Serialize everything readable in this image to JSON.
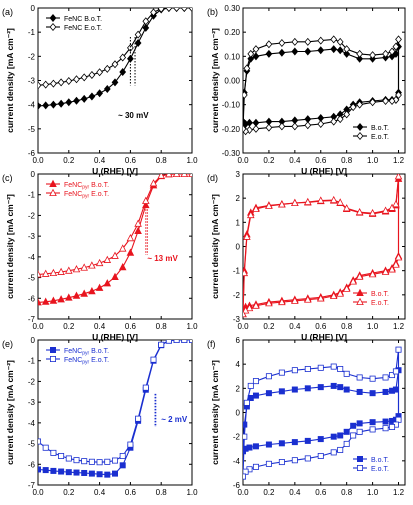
{
  "chart_data": [
    {
      "type": "line",
      "panel_label": "(a)",
      "xlabel": "U (RHE) [V]",
      "ylabel": "current density [mA cm⁻²]",
      "xlim": [
        0.0,
        1.0
      ],
      "ylim": [
        -6,
        0
      ],
      "xticks": [
        0.0,
        0.2,
        0.4,
        0.6,
        0.8,
        1.0
      ],
      "yticks": [
        0,
        -1,
        -2,
        -3,
        -4,
        -5,
        -6
      ],
      "legend_position": "top-left",
      "annotation": "~ 30 mV",
      "series": [
        {
          "name": "FeNC B.o.T.",
          "color": "#000000",
          "marker": "diamond-filled",
          "x": [
            0.0,
            0.05,
            0.1,
            0.15,
            0.2,
            0.25,
            0.3,
            0.35,
            0.4,
            0.45,
            0.5,
            0.55,
            0.6,
            0.65,
            0.7,
            0.75,
            0.8,
            0.85,
            0.9,
            0.95,
            1.0
          ],
          "y": [
            -4.05,
            -4.03,
            -4.0,
            -3.96,
            -3.9,
            -3.84,
            -3.76,
            -3.66,
            -3.53,
            -3.35,
            -3.08,
            -2.65,
            -2.1,
            -1.45,
            -0.82,
            -0.32,
            -0.06,
            0.0,
            0.0,
            0.0,
            0.0
          ]
        },
        {
          "name": "FeNC E.o.T.",
          "color": "#000000",
          "marker": "diamond-open",
          "x": [
            0.0,
            0.05,
            0.1,
            0.15,
            0.2,
            0.25,
            0.3,
            0.35,
            0.4,
            0.45,
            0.5,
            0.55,
            0.6,
            0.65,
            0.7,
            0.75,
            0.8,
            0.85,
            0.9,
            0.95,
            1.0
          ],
          "y": [
            -3.2,
            -3.17,
            -3.13,
            -3.08,
            -3.02,
            -2.95,
            -2.87,
            -2.77,
            -2.66,
            -2.52,
            -2.33,
            -2.05,
            -1.65,
            -1.1,
            -0.55,
            -0.18,
            -0.03,
            0.0,
            0.0,
            0.0,
            0.0
          ]
        }
      ]
    },
    {
      "type": "line",
      "panel_label": "(b)",
      "xlabel": "U (RHE) [V]",
      "ylabel": "current density [mA cm⁻²]",
      "xlim": [
        0.0,
        1.25
      ],
      "ylim": [
        -0.3,
        0.3
      ],
      "xticks": [
        0.0,
        0.2,
        0.4,
        0.6,
        0.8,
        1.0,
        1.2
      ],
      "yticks": [
        0.3,
        0.2,
        0.1,
        0.0,
        -0.1,
        -0.2,
        -0.3
      ],
      "legend_position": "bottom-right",
      "series": [
        {
          "name": "B.o.T.",
          "color": "#000000",
          "marker": "diamond-filled",
          "x": [
            0.0,
            0.01,
            0.03,
            0.06,
            0.1,
            0.2,
            0.3,
            0.4,
            0.5,
            0.6,
            0.7,
            0.75,
            0.8,
            0.9,
            1.0,
            1.1,
            1.15,
            1.18,
            1.2,
            1.2,
            1.18,
            1.15,
            1.1,
            1.0,
            0.9,
            0.85,
            0.8,
            0.75,
            0.7,
            0.6,
            0.5,
            0.4,
            0.3,
            0.2,
            0.1,
            0.05,
            0.02,
            0.0
          ],
          "y": [
            -0.17,
            -0.05,
            0.04,
            0.09,
            0.1,
            0.11,
            0.115,
            0.12,
            0.12,
            0.125,
            0.13,
            0.125,
            0.11,
            0.09,
            0.09,
            0.095,
            0.1,
            0.11,
            0.14,
            -0.05,
            -0.08,
            -0.08,
            -0.08,
            -0.085,
            -0.09,
            -0.1,
            -0.12,
            -0.14,
            -0.15,
            -0.155,
            -0.16,
            -0.165,
            -0.17,
            -0.17,
            -0.175,
            -0.175,
            -0.18,
            -0.17
          ]
        },
        {
          "name": "E.o.T.",
          "color": "#000000",
          "marker": "diamond-open",
          "x": [
            0.0,
            0.01,
            0.03,
            0.06,
            0.1,
            0.2,
            0.3,
            0.4,
            0.5,
            0.6,
            0.7,
            0.75,
            0.8,
            0.9,
            1.0,
            1.1,
            1.15,
            1.18,
            1.2,
            1.2,
            1.18,
            1.15,
            1.1,
            1.0,
            0.9,
            0.85,
            0.8,
            0.75,
            0.7,
            0.6,
            0.5,
            0.4,
            0.3,
            0.2,
            0.1,
            0.05,
            0.02,
            0.0
          ],
          "y": [
            -0.2,
            -0.06,
            0.05,
            0.11,
            0.13,
            0.15,
            0.155,
            0.16,
            0.16,
            0.165,
            0.17,
            0.16,
            0.13,
            0.11,
            0.105,
            0.11,
            0.12,
            0.14,
            0.17,
            -0.06,
            -0.08,
            -0.085,
            -0.085,
            -0.09,
            -0.1,
            -0.11,
            -0.14,
            -0.16,
            -0.17,
            -0.18,
            -0.185,
            -0.19,
            -0.19,
            -0.195,
            -0.2,
            -0.205,
            -0.21,
            -0.2
          ]
        }
      ]
    },
    {
      "type": "line",
      "panel_label": "(c)",
      "xlabel": "U (RHE) [V]",
      "ylabel": "current density [mA cm⁻²]",
      "xlim": [
        0.0,
        1.0
      ],
      "ylim": [
        -7,
        0
      ],
      "xticks": [
        0.0,
        0.2,
        0.4,
        0.6,
        0.8,
        1.0
      ],
      "yticks": [
        0,
        -1,
        -2,
        -3,
        -4,
        -5,
        -6,
        -7
      ],
      "legend_position": "top-left",
      "legend_text_1": "FeNC",
      "legend_subscript": "pyr",
      "annotation": "~ 13 mV",
      "series": [
        {
          "name": "B.o.T.",
          "color": "#e8141e",
          "marker": "triangle-filled",
          "x": [
            0.0,
            0.05,
            0.1,
            0.15,
            0.2,
            0.25,
            0.3,
            0.35,
            0.4,
            0.45,
            0.5,
            0.55,
            0.6,
            0.65,
            0.7,
            0.75,
            0.8,
            0.85,
            0.9,
            0.95,
            1.0
          ],
          "y": [
            -6.2,
            -6.17,
            -6.12,
            -6.05,
            -5.97,
            -5.88,
            -5.78,
            -5.66,
            -5.5,
            -5.28,
            -4.97,
            -4.5,
            -3.8,
            -2.75,
            -1.5,
            -0.55,
            -0.1,
            -0.01,
            0.0,
            0.0,
            0.0
          ]
        },
        {
          "name": "E.o.T.",
          "color": "#e8141e",
          "marker": "triangle-open",
          "x": [
            0.0,
            0.05,
            0.1,
            0.15,
            0.2,
            0.25,
            0.3,
            0.35,
            0.4,
            0.45,
            0.5,
            0.55,
            0.6,
            0.65,
            0.7,
            0.75,
            0.8,
            0.85,
            0.9,
            0.95,
            1.0
          ],
          "y": [
            -4.85,
            -4.82,
            -4.78,
            -4.73,
            -4.67,
            -4.6,
            -4.52,
            -4.42,
            -4.3,
            -4.15,
            -3.95,
            -3.6,
            -3.1,
            -2.4,
            -1.3,
            -0.45,
            -0.08,
            -0.01,
            0.0,
            0.0,
            0.0
          ]
        }
      ]
    },
    {
      "type": "line",
      "panel_label": "(d)",
      "xlabel": "U (RHE) [V]",
      "ylabel": "current density [mA cm⁻²]",
      "xlim": [
        0.0,
        1.25
      ],
      "ylim": [
        -3,
        3
      ],
      "xticks": [
        0.0,
        0.2,
        0.4,
        0.6,
        0.8,
        1.0,
        1.2
      ],
      "yticks": [
        3,
        2,
        1,
        0,
        -1,
        -2,
        -3
      ],
      "legend_position": "bottom-right",
      "series": [
        {
          "name": "B.o.T.",
          "color": "#e8141e",
          "marker": "triangle-filled",
          "x": [
            0.0,
            0.01,
            0.03,
            0.06,
            0.1,
            0.2,
            0.3,
            0.4,
            0.5,
            0.6,
            0.7,
            0.75,
            0.8,
            0.9,
            1.0,
            1.1,
            1.15,
            1.18,
            1.2,
            1.2,
            1.18,
            1.15,
            1.1,
            1.0,
            0.9,
            0.85,
            0.8,
            0.75,
            0.7,
            0.6,
            0.5,
            0.4,
            0.3,
            0.2,
            0.1,
            0.05,
            0.02,
            0.0
          ],
          "y": [
            -2.6,
            -1.0,
            0.5,
            1.4,
            1.6,
            1.7,
            1.75,
            1.8,
            1.82,
            1.88,
            1.9,
            1.8,
            1.55,
            1.4,
            1.35,
            1.45,
            1.55,
            1.7,
            2.8,
            -0.4,
            -0.7,
            -0.9,
            -1.0,
            -1.1,
            -1.2,
            -1.4,
            -1.7,
            -1.9,
            -2.0,
            -2.1,
            -2.15,
            -2.2,
            -2.25,
            -2.3,
            -2.4,
            -2.45,
            -2.5,
            -2.6
          ]
        },
        {
          "name": "E.o.T.",
          "color": "#e8141e",
          "marker": "triangle-open",
          "x": [
            0.0,
            0.01,
            0.03,
            0.06,
            0.1,
            0.2,
            0.3,
            0.4,
            0.5,
            0.6,
            0.7,
            0.75,
            0.8,
            0.9,
            1.0,
            1.1,
            1.15,
            1.18,
            1.2,
            1.2,
            1.18,
            1.15,
            1.1,
            1.0,
            0.9,
            0.85,
            0.8,
            0.75,
            0.7,
            0.6,
            0.5,
            0.4,
            0.3,
            0.2,
            0.1,
            0.05,
            0.02,
            0.0
          ],
          "y": [
            -2.8,
            -1.1,
            0.4,
            1.3,
            1.55,
            1.68,
            1.74,
            1.8,
            1.84,
            1.9,
            1.92,
            1.82,
            1.58,
            1.42,
            1.38,
            1.48,
            1.6,
            1.75,
            2.9,
            -0.45,
            -0.75,
            -0.95,
            -1.05,
            -1.15,
            -1.25,
            -1.45,
            -1.75,
            -1.95,
            -2.05,
            -2.15,
            -2.2,
            -2.25,
            -2.3,
            -2.35,
            -2.45,
            -2.55,
            -2.65,
            -2.8
          ]
        }
      ]
    },
    {
      "type": "line",
      "panel_label": "(e)",
      "xlabel": "U (RHE) [V]",
      "ylabel": "current density [mA cm⁻²]",
      "xlim": [
        0.0,
        1.0
      ],
      "ylim": [
        -7,
        0
      ],
      "xticks": [
        0.0,
        0.2,
        0.4,
        0.6,
        0.8,
        1.0
      ],
      "yticks": [
        0,
        -1,
        -2,
        -3,
        -4,
        -5,
        -6,
        -7
      ],
      "legend_position": "top-left",
      "legend_text_1": "FeNC",
      "legend_subscript": "pyr",
      "annotation": "~ 2 mV",
      "series": [
        {
          "name": "B.o.T.",
          "color": "#1a2fd0",
          "marker": "square-filled",
          "x": [
            0.0,
            0.05,
            0.1,
            0.15,
            0.2,
            0.25,
            0.3,
            0.35,
            0.4,
            0.45,
            0.5,
            0.55,
            0.6,
            0.65,
            0.7,
            0.75,
            0.8,
            0.85,
            0.9,
            0.95,
            1.0
          ],
          "y": [
            -6.25,
            -6.28,
            -6.32,
            -6.35,
            -6.38,
            -6.4,
            -6.42,
            -6.45,
            -6.48,
            -6.5,
            -6.45,
            -6.05,
            -5.2,
            -3.9,
            -2.4,
            -1.0,
            -0.25,
            -0.03,
            0.0,
            0.0,
            0.0
          ]
        },
        {
          "name": "E.o.T.",
          "color": "#1a2fd0",
          "marker": "square-open",
          "x": [
            0.0,
            0.05,
            0.1,
            0.15,
            0.2,
            0.25,
            0.3,
            0.35,
            0.4,
            0.45,
            0.5,
            0.55,
            0.6,
            0.65,
            0.7,
            0.75,
            0.8,
            0.85,
            0.9,
            0.95,
            1.0
          ],
          "y": [
            -4.9,
            -5.2,
            -5.45,
            -5.6,
            -5.72,
            -5.8,
            -5.85,
            -5.88,
            -5.9,
            -5.88,
            -5.82,
            -5.6,
            -5.05,
            -3.8,
            -2.3,
            -0.95,
            -0.23,
            -0.03,
            0.0,
            0.0,
            0.0
          ]
        }
      ]
    },
    {
      "type": "line",
      "panel_label": "(f)",
      "xlabel": "U (RHE) [V]",
      "ylabel": "current density [mA cm⁻²]",
      "xlim": [
        0.0,
        1.25
      ],
      "ylim": [
        -6,
        6
      ],
      "xticks": [
        0.0,
        0.2,
        0.4,
        0.6,
        0.8,
        1.0,
        1.2
      ],
      "yticks": [
        6,
        4,
        2,
        0,
        -2,
        -4,
        -6
      ],
      "legend_position": "bottom-right",
      "series": [
        {
          "name": "B.o.T.",
          "color": "#1a2fd0",
          "marker": "square-filled",
          "x": [
            0.0,
            0.01,
            0.03,
            0.06,
            0.1,
            0.2,
            0.3,
            0.4,
            0.5,
            0.6,
            0.7,
            0.75,
            0.8,
            0.9,
            1.0,
            1.1,
            1.15,
            1.18,
            1.2,
            1.2,
            1.18,
            1.15,
            1.1,
            1.0,
            0.9,
            0.85,
            0.8,
            0.75,
            0.7,
            0.6,
            0.5,
            0.4,
            0.3,
            0.2,
            0.1,
            0.05,
            0.02,
            0.0
          ],
          "y": [
            -3.2,
            -1.0,
            0.5,
            1.2,
            1.4,
            1.6,
            1.75,
            1.9,
            2.0,
            2.1,
            2.2,
            2.1,
            1.9,
            1.7,
            1.6,
            1.7,
            1.8,
            1.9,
            3.5,
            -0.3,
            -0.6,
            -0.7,
            -0.75,
            -0.8,
            -0.9,
            -1.1,
            -1.6,
            -1.9,
            -2.0,
            -2.2,
            -2.35,
            -2.45,
            -2.55,
            -2.65,
            -2.8,
            -2.9,
            -3.0,
            -3.2
          ]
        },
        {
          "name": "E.o.T.",
          "color": "#1a2fd0",
          "marker": "square-open",
          "x": [
            0.0,
            0.01,
            0.03,
            0.06,
            0.1,
            0.2,
            0.3,
            0.4,
            0.5,
            0.6,
            0.7,
            0.75,
            0.8,
            0.9,
            1.0,
            1.1,
            1.15,
            1.18,
            1.2,
            1.2,
            1.18,
            1.15,
            1.1,
            1.0,
            0.9,
            0.85,
            0.8,
            0.75,
            0.7,
            0.6,
            0.5,
            0.4,
            0.3,
            0.2,
            0.1,
            0.05,
            0.02,
            0.0
          ],
          "y": [
            -5.3,
            -2.0,
            0.8,
            2.2,
            2.6,
            3.0,
            3.3,
            3.5,
            3.6,
            3.7,
            3.8,
            3.6,
            3.2,
            2.9,
            2.8,
            2.9,
            3.1,
            3.4,
            5.2,
            -0.6,
            -1.0,
            -1.2,
            -1.3,
            -1.4,
            -1.6,
            -1.9,
            -2.6,
            -3.1,
            -3.3,
            -3.6,
            -3.8,
            -3.95,
            -4.1,
            -4.25,
            -4.5,
            -4.7,
            -4.9,
            -5.3
          ]
        }
      ]
    }
  ]
}
